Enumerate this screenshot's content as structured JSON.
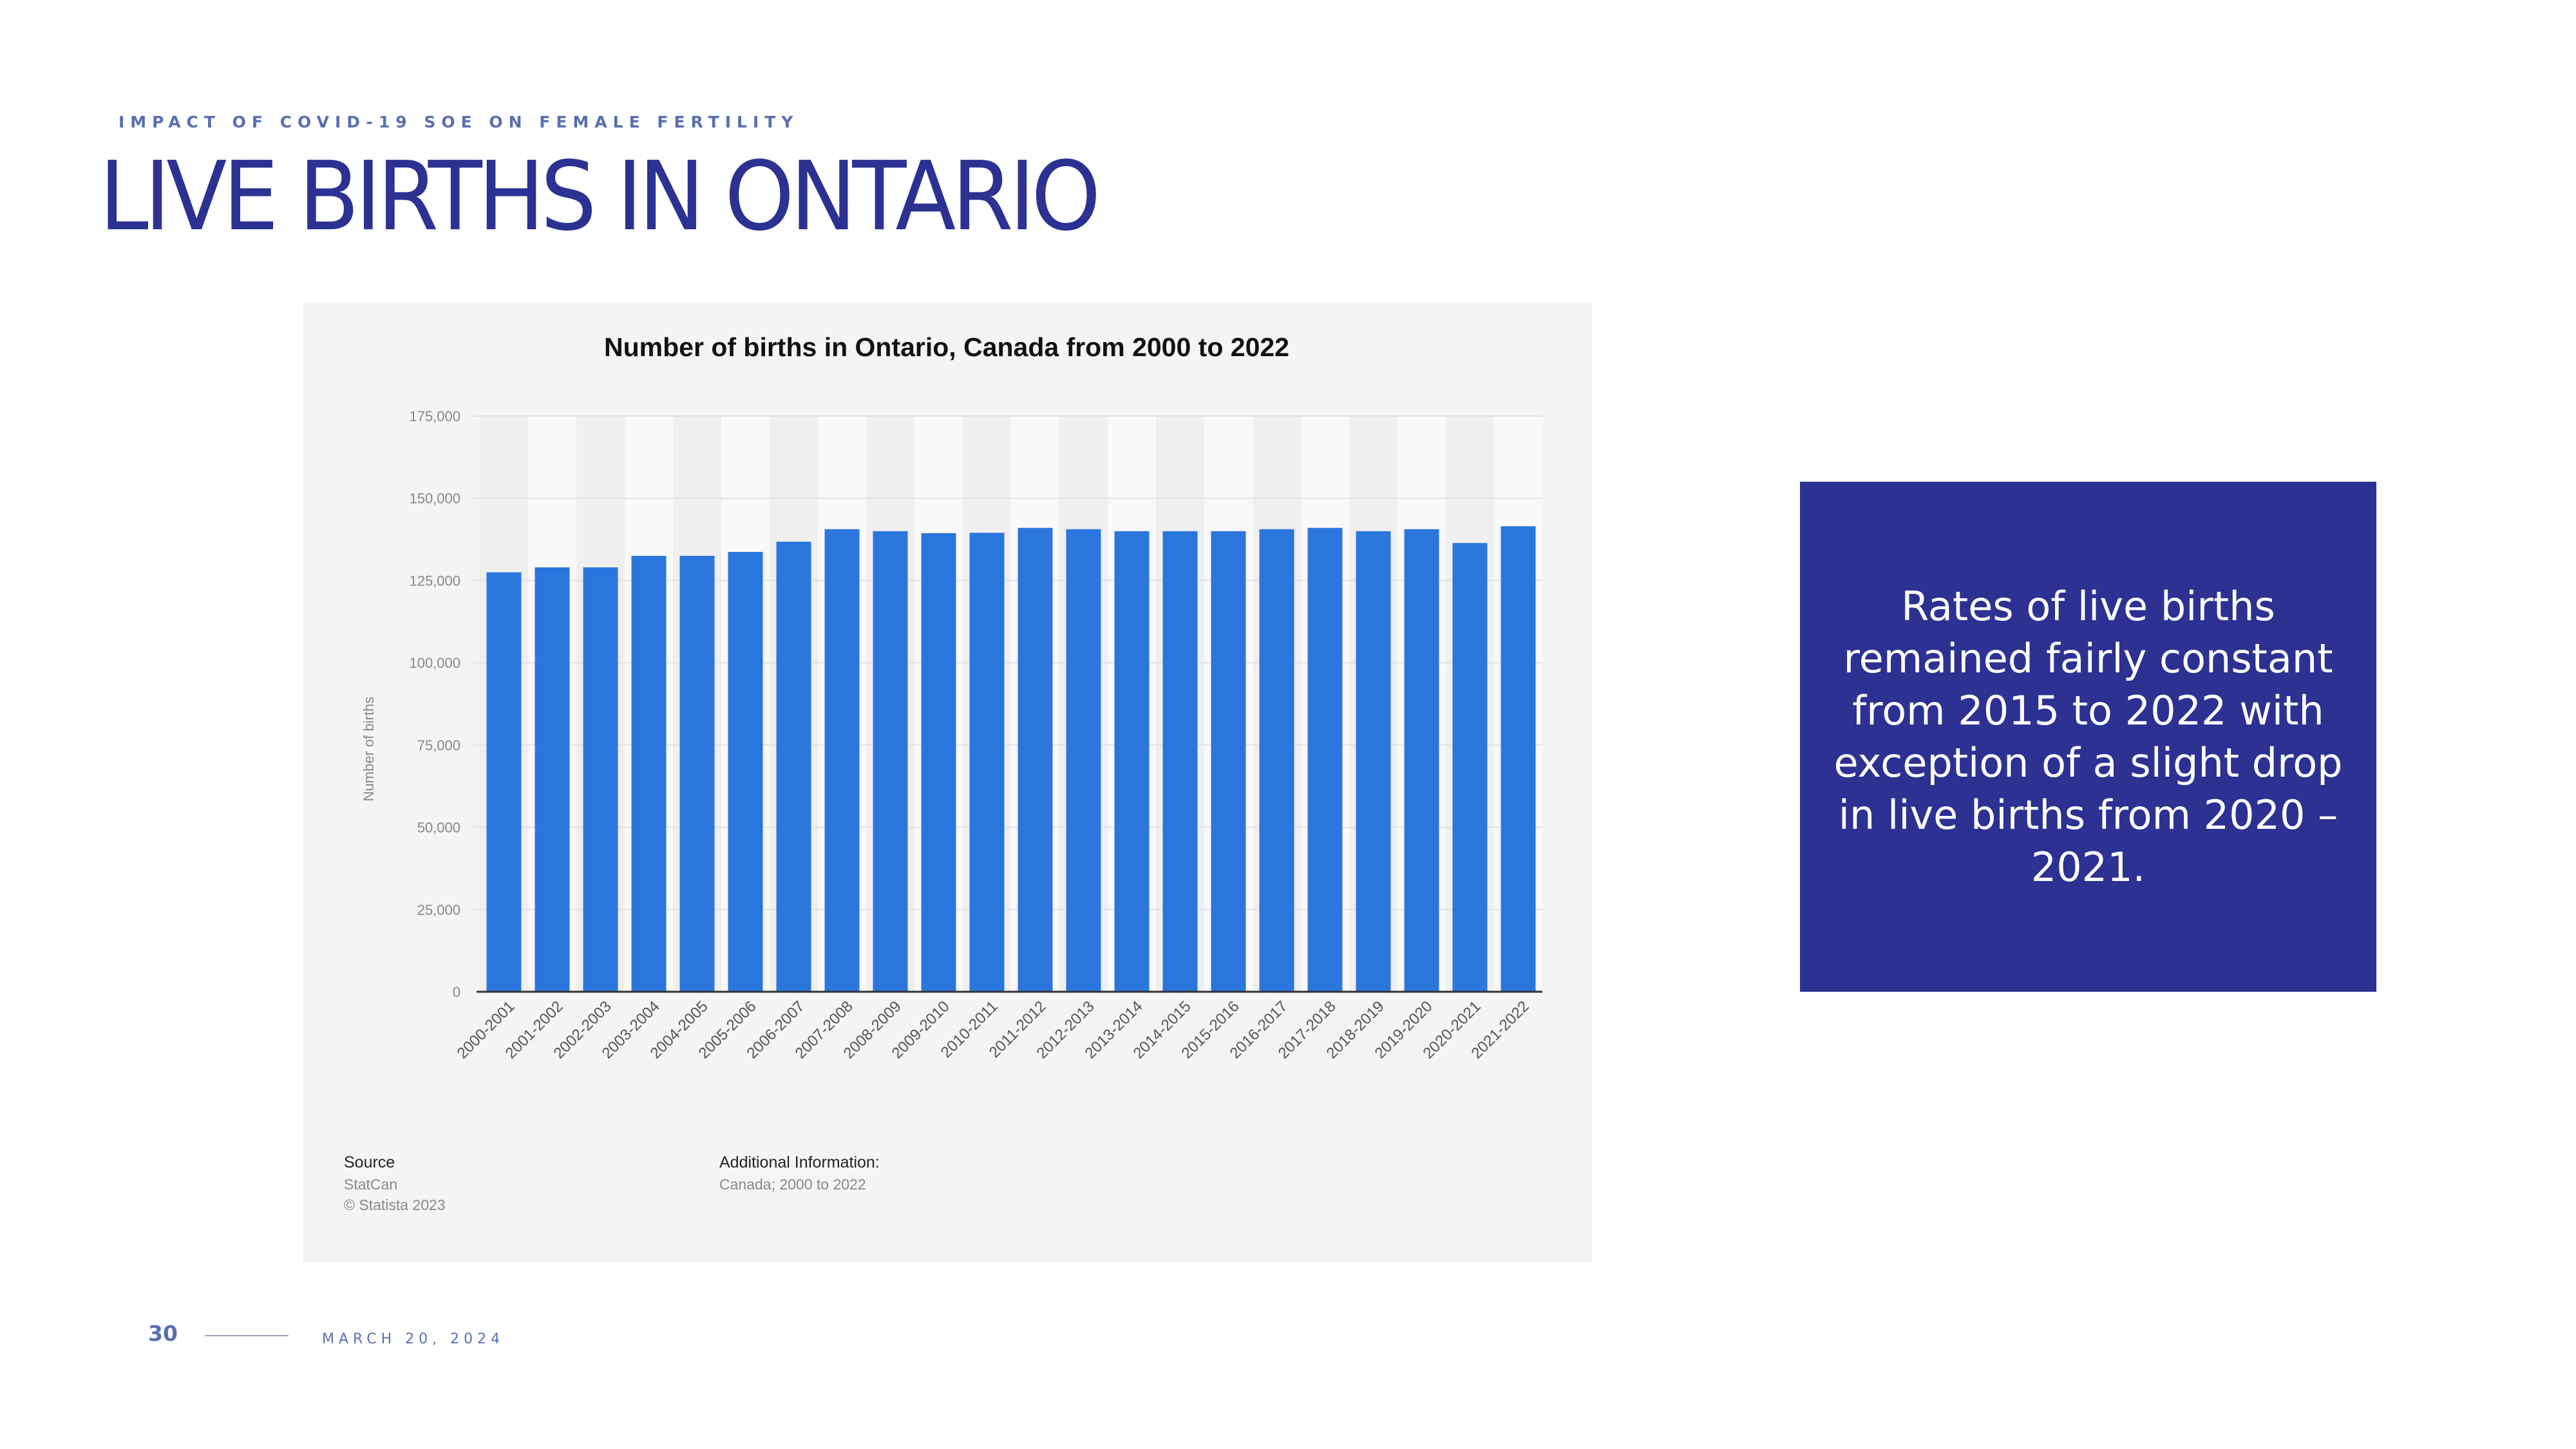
{
  "slide": {
    "kicker": "IMPACT OF COVID-19 SOE ON FEMALE FERTILITY",
    "title": "LIVE BIRTHS IN ONTARIO",
    "callout": "Rates of live births remained fairly constant from 2015 to 2022 with exception of a slight drop in live births from 2020 – 2021.",
    "page_number": "30",
    "date": "MARCH 20, 2024"
  },
  "source": {
    "heading": "Source",
    "lines": [
      "StatCan",
      "© Statista 2023"
    ],
    "additional_heading": "Additional Information:",
    "additional_text": "Canada; 2000 to 2022"
  },
  "colors": {
    "brand_navy": "#2d3192",
    "accent_blue": "#5a6fb0",
    "bar_blue": "#2b76dd",
    "panel_gray": "#f4f4f4"
  },
  "chart_data": {
    "type": "bar",
    "title": "Number of births in Ontario, Canada from 2000 to 2022",
    "xlabel": "",
    "ylabel": "Number of births",
    "categories": [
      "2000-2001",
      "2001-2002",
      "2002-2003",
      "2003-2004",
      "2004-2005",
      "2005-2006",
      "2006-2007",
      "2007-2008",
      "2008-2009",
      "2009-2010",
      "2010-2011",
      "2011-2012",
      "2012-2013",
      "2013-2014",
      "2014-2015",
      "2015-2016",
      "2016-2017",
      "2017-2018",
      "2018-2019",
      "2019-2020",
      "2020-2021",
      "2021-2022"
    ],
    "values": [
      127500,
      129000,
      129000,
      132500,
      132500,
      133700,
      136800,
      140600,
      140000,
      139400,
      139500,
      141000,
      140600,
      140000,
      140000,
      140000,
      140600,
      141000,
      140000,
      140600,
      136400,
      141500
    ],
    "ylim": [
      0,
      175000
    ],
    "yticks": [
      0,
      25000,
      50000,
      75000,
      100000,
      125000,
      150000,
      175000
    ],
    "ytick_labels": [
      "0",
      "25,000",
      "50,000",
      "75,000",
      "100,000",
      "125,000",
      "150,000",
      "175,000"
    ],
    "grid": true,
    "legend": "none"
  }
}
